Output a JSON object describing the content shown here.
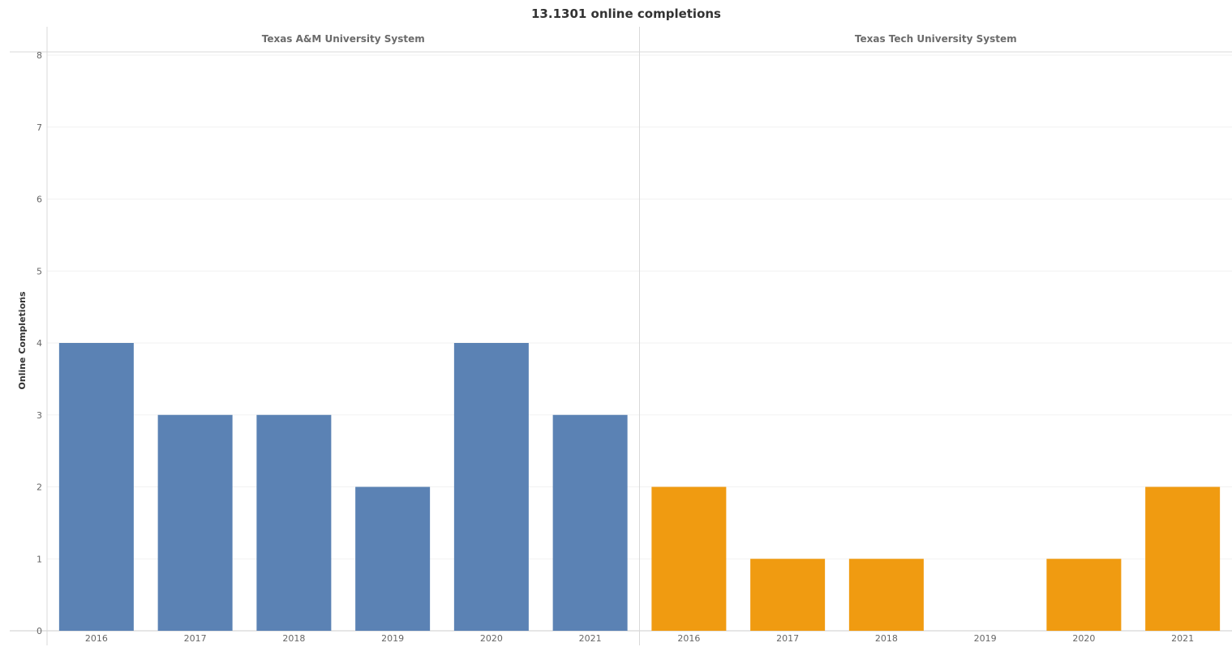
{
  "chart_data": {
    "type": "bar",
    "title": "13.1301 online completions",
    "ylabel": "Online Completions",
    "ylim": [
      0,
      8
    ],
    "yticks": [
      0,
      1,
      2,
      3,
      4,
      5,
      6,
      7,
      8
    ],
    "grid": true,
    "panels": [
      {
        "name": "Texas A&M University System",
        "color": "#5b82b4",
        "categories": [
          "2016",
          "2017",
          "2018",
          "2019",
          "2020",
          "2021"
        ],
        "values": [
          4,
          3,
          3,
          2,
          4,
          3
        ]
      },
      {
        "name": "Texas Tech University System",
        "color": "#f09b11",
        "categories": [
          "2016",
          "2017",
          "2018",
          "2019",
          "2020",
          "2021"
        ],
        "values": [
          2,
          1,
          1,
          null,
          1,
          2
        ]
      }
    ]
  },
  "icons": {
    "sort": "sort-descending-icon"
  }
}
